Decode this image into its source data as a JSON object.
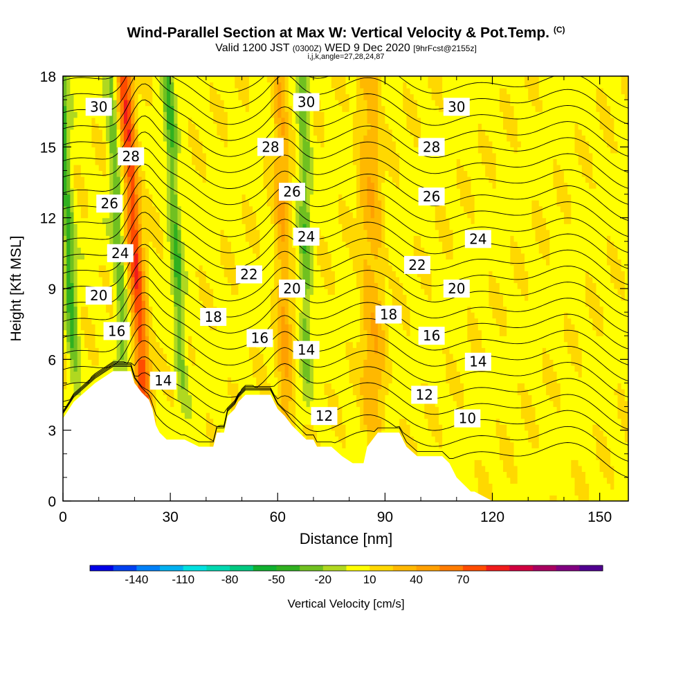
{
  "chart_data": {
    "type": "heatmap",
    "title": "Wind-Parallel Section at Max W: Vertical Velocity & Pot.Temp.",
    "title_mark": "(C)",
    "subtitle_valid": "Valid 1200 JST",
    "subtitle_utc": "(0300Z)",
    "subtitle_date": "WED 9 Dec 2020",
    "subtitle_fcst": "[9hrFcst@2155z]",
    "indices": "i,j,k,angle=27,28,24,87",
    "xlabel": "Distance [nm]",
    "ylabel": "Height [Kft MSL]",
    "xlim": [
      0,
      158
    ],
    "ylim": [
      0,
      18
    ],
    "x_ticks": [
      "0",
      "30",
      "60",
      "90",
      "120",
      "150"
    ],
    "y_ticks": [
      "0",
      "3",
      "6",
      "9",
      "12",
      "15",
      "18"
    ],
    "colorbar_label": "Vertical Velocity [cm/s]",
    "colorbar_ticks": [
      "-140",
      "-110",
      "-80",
      "-50",
      "-20",
      "10",
      "40",
      "70"
    ],
    "colorbar_colors": [
      "#0000e6",
      "#0040f0",
      "#0080f8",
      "#00b0f0",
      "#00e0e0",
      "#00d8b0",
      "#00c880",
      "#10b030",
      "#30b020",
      "#70c020",
      "#b0d820",
      "#ffff00",
      "#ffd800",
      "#ffb800",
      "#ffa000",
      "#ff7c00",
      "#ff4c00",
      "#f01c1c",
      "#d00040",
      "#a80060",
      "#800080",
      "#500090"
    ],
    "terrain": [
      [
        0,
        3.5
      ],
      [
        3,
        4.2
      ],
      [
        6,
        4.6
      ],
      [
        9,
        5.0
      ],
      [
        12,
        5.3
      ],
      [
        14,
        5.5
      ],
      [
        17,
        5.5
      ],
      [
        19,
        5.5
      ],
      [
        20,
        5.0
      ],
      [
        22,
        4.6
      ],
      [
        24,
        4.3
      ],
      [
        25,
        3.9
      ],
      [
        26,
        3.2
      ],
      [
        27,
        2.9
      ],
      [
        29,
        2.6
      ],
      [
        34,
        2.6
      ],
      [
        38,
        2.3
      ],
      [
        42,
        2.3
      ],
      [
        43,
        2.9
      ],
      [
        45,
        2.9
      ],
      [
        46,
        3.6
      ],
      [
        48,
        3.9
      ],
      [
        49,
        4.2
      ],
      [
        51,
        4.5
      ],
      [
        58,
        4.5
      ],
      [
        60,
        3.9
      ],
      [
        62,
        3.6
      ],
      [
        64,
        3.2
      ],
      [
        66,
        2.9
      ],
      [
        68,
        2.6
      ],
      [
        70,
        2.6
      ],
      [
        71,
        2.3
      ],
      [
        75,
        2.3
      ],
      [
        78,
        1.9
      ],
      [
        81,
        1.6
      ],
      [
        84,
        1.6
      ],
      [
        85,
        2.3
      ],
      [
        88,
        2.9
      ],
      [
        94,
        2.9
      ],
      [
        96,
        2.3
      ],
      [
        99,
        1.9
      ],
      [
        106,
        1.9
      ],
      [
        108,
        1.6
      ],
      [
        110,
        1.0
      ],
      [
        112,
        0.7
      ],
      [
        114,
        0.4
      ],
      [
        115,
        0.4
      ],
      [
        120,
        0.0
      ],
      [
        158,
        0.0
      ]
    ],
    "updraft_cores_cm_s": [
      {
        "x": 22,
        "value": 75
      },
      {
        "x": 62,
        "value": 35
      },
      {
        "x": 85,
        "value": 20
      },
      {
        "x": 88,
        "value": 25
      }
    ],
    "downdraft_bands_cm_s": [
      {
        "x": 3,
        "value": -45
      },
      {
        "x": 17,
        "value": -35
      },
      {
        "x": 33,
        "value": -40
      },
      {
        "x": 68,
        "value": -35
      }
    ],
    "background_value_cm_s": 5,
    "theta_labels": [
      {
        "text": "30",
        "x": 10,
        "y": 16.7
      },
      {
        "text": "30",
        "x": 68,
        "y": 16.9
      },
      {
        "text": "30",
        "x": 110,
        "y": 16.7
      },
      {
        "text": "28",
        "x": 19,
        "y": 14.6
      },
      {
        "text": "28",
        "x": 58,
        "y": 15.0
      },
      {
        "text": "28",
        "x": 103,
        "y": 15.0
      },
      {
        "text": "26",
        "x": 13,
        "y": 12.6
      },
      {
        "text": "26",
        "x": 64,
        "y": 13.1
      },
      {
        "text": "26",
        "x": 103,
        "y": 12.9
      },
      {
        "text": "24",
        "x": 16,
        "y": 10.5
      },
      {
        "text": "24",
        "x": 68,
        "y": 11.2
      },
      {
        "text": "24",
        "x": 116,
        "y": 11.1
      },
      {
        "text": "22",
        "x": 52,
        "y": 9.6
      },
      {
        "text": "22",
        "x": 99,
        "y": 10.0
      },
      {
        "text": "20",
        "x": 10,
        "y": 8.7
      },
      {
        "text": "20",
        "x": 64,
        "y": 9.0
      },
      {
        "text": "20",
        "x": 110,
        "y": 9.0
      },
      {
        "text": "18",
        "x": 42,
        "y": 7.8
      },
      {
        "text": "18",
        "x": 91,
        "y": 7.9
      },
      {
        "text": "16",
        "x": 15,
        "y": 7.2
      },
      {
        "text": "16",
        "x": 55,
        "y": 6.9
      },
      {
        "text": "16",
        "x": 103,
        "y": 7.0
      },
      {
        "text": "14",
        "x": 28,
        "y": 5.1
      },
      {
        "text": "14",
        "x": 68,
        "y": 6.4
      },
      {
        "text": "14",
        "x": 116,
        "y": 5.9
      },
      {
        "text": "12",
        "x": 73,
        "y": 3.6
      },
      {
        "text": "12",
        "x": 101,
        "y": 4.5
      },
      {
        "text": "10",
        "x": 113,
        "y": 3.5
      }
    ]
  }
}
